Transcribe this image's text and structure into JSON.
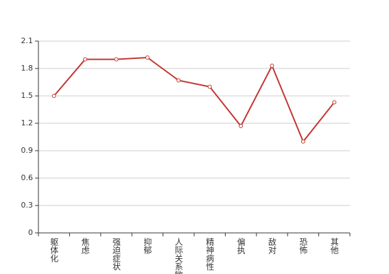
{
  "chart_data": {
    "type": "line",
    "categories": [
      "躯体化",
      "焦虑",
      "强迫症状",
      "抑郁",
      "人际关系敏感",
      "精神病性",
      "偏执",
      "敌对",
      "恐怖",
      "其他"
    ],
    "values": [
      1.5,
      1.9,
      1.9,
      1.92,
      1.67,
      1.6,
      1.17,
      1.83,
      1.0,
      1.43
    ],
    "color": "#c23531",
    "ylim": [
      0,
      2.1
    ],
    "yticks": [
      0,
      0.3,
      0.6,
      0.9,
      1.2,
      1.5,
      1.8,
      2.1
    ],
    "grid": true
  }
}
